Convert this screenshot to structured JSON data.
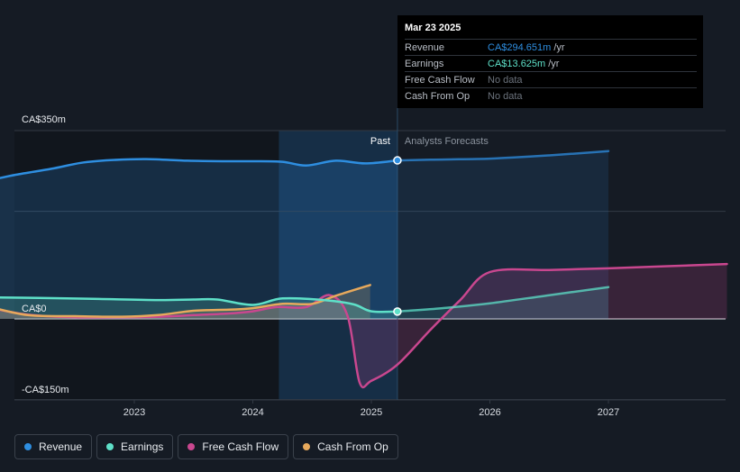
{
  "chart_data": {
    "type": "line",
    "y_axis": {
      "labels": [
        "CA$350m",
        "CA$0",
        "-CA$150m"
      ],
      "ylim": [
        -150,
        350
      ],
      "ticks": [
        350,
        200,
        0,
        -150
      ]
    },
    "x_axis": {
      "ticks": [
        2023,
        2024,
        2025,
        2026,
        2027
      ],
      "xlim": [
        2021.75,
        2028.0
      ]
    },
    "past_label": "Past",
    "forecast_label": "Analysts Forecasts",
    "past_end": 2025.22,
    "shaded_start": 2024.22,
    "series": [
      {
        "name": "Revenue",
        "color": "#2e8ee0",
        "points": [
          [
            2021.75,
            256
          ],
          [
            2022.0,
            268
          ],
          [
            2022.3,
            279
          ],
          [
            2022.55,
            290
          ],
          [
            2022.8,
            295
          ],
          [
            2023.1,
            297
          ],
          [
            2023.45,
            294
          ],
          [
            2023.75,
            293
          ],
          [
            2024.0,
            293
          ],
          [
            2024.25,
            292
          ],
          [
            2024.45,
            285
          ],
          [
            2024.7,
            294
          ],
          [
            2024.95,
            289
          ],
          [
            2025.22,
            294.651
          ]
        ],
        "forecast": [
          [
            2025.22,
            294.651
          ],
          [
            2025.5,
            296
          ],
          [
            2026.0,
            298
          ],
          [
            2026.5,
            304
          ],
          [
            2027.0,
            312
          ]
        ]
      },
      {
        "name": "Earnings",
        "color": "#5ee0c8",
        "points": [
          [
            2021.75,
            40
          ],
          [
            2022.2,
            39
          ],
          [
            2022.7,
            37
          ],
          [
            2023.2,
            35
          ],
          [
            2023.5,
            36
          ],
          [
            2023.7,
            36
          ],
          [
            2024.0,
            26
          ],
          [
            2024.25,
            38
          ],
          [
            2024.6,
            35
          ],
          [
            2024.85,
            27
          ],
          [
            2025.0,
            14
          ],
          [
            2025.22,
            13.625
          ]
        ],
        "forecast": [
          [
            2025.22,
            13.625
          ],
          [
            2025.6,
            20
          ],
          [
            2026.0,
            29
          ],
          [
            2026.5,
            44
          ],
          [
            2027.0,
            59
          ]
        ]
      },
      {
        "name": "Free Cash Flow",
        "color": "#c9478f",
        "points": [
          [
            2021.75,
            22
          ],
          [
            2022.1,
            8
          ],
          [
            2022.5,
            3
          ],
          [
            2022.9,
            3
          ],
          [
            2023.2,
            4
          ],
          [
            2023.5,
            7
          ],
          [
            2023.8,
            10
          ],
          [
            2024.0,
            14
          ],
          [
            2024.2,
            22
          ],
          [
            2024.45,
            22
          ],
          [
            2024.65,
            44
          ],
          [
            2024.8,
            5
          ],
          [
            2024.9,
            -118
          ],
          [
            2025.0,
            -115
          ],
          [
            2025.22,
            -85
          ],
          [
            2025.5,
            -20
          ],
          [
            2025.75,
            35
          ],
          [
            2026.0,
            87
          ],
          [
            2026.5,
            91
          ],
          [
            2027.0,
            94
          ],
          [
            2027.5,
            98
          ],
          [
            2028.0,
            102
          ]
        ]
      },
      {
        "name": "Cash From Op",
        "color": "#e7a95c",
        "points": [
          [
            2021.75,
            24
          ],
          [
            2022.1,
            7
          ],
          [
            2022.5,
            5
          ],
          [
            2022.9,
            4
          ],
          [
            2023.2,
            7
          ],
          [
            2023.5,
            15
          ],
          [
            2023.8,
            17
          ],
          [
            2024.0,
            20
          ],
          [
            2024.25,
            28
          ],
          [
            2024.5,
            28
          ],
          [
            2024.7,
            43
          ],
          [
            2024.99,
            63
          ]
        ]
      }
    ]
  },
  "tooltip": {
    "date": "Mar 23 2025",
    "rows": [
      {
        "label": "Revenue",
        "value": "CA$294.651m",
        "unit": "/yr",
        "color": "#2e8ee0"
      },
      {
        "label": "Earnings",
        "value": "CA$13.625m",
        "unit": "/yr",
        "color": "#5ee0c8"
      },
      {
        "label": "Free Cash Flow",
        "nodata": "No data"
      },
      {
        "label": "Cash From Op",
        "nodata": "No data"
      }
    ]
  },
  "legend": [
    {
      "label": "Revenue",
      "color": "#2e8ee0"
    },
    {
      "label": "Earnings",
      "color": "#5ee0c8"
    },
    {
      "label": "Free Cash Flow",
      "color": "#c9478f"
    },
    {
      "label": "Cash From Op",
      "color": "#e7a95c"
    }
  ]
}
